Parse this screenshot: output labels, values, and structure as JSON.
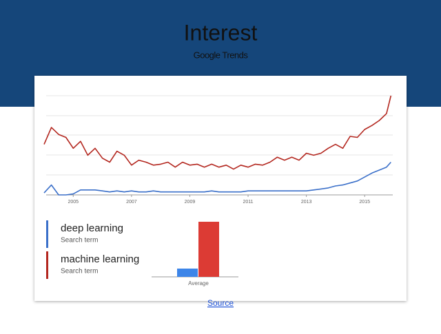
{
  "title": "Interest",
  "subtitle": "Google Trends",
  "link": "Source",
  "chart_data": [
    {
      "type": "line",
      "x": [
        2004.0,
        2004.25,
        2004.5,
        2004.75,
        2005.0,
        2005.25,
        2005.5,
        2005.75,
        2006.0,
        2006.25,
        2006.5,
        2006.75,
        2007.0,
        2007.25,
        2007.5,
        2007.75,
        2008.0,
        2008.25,
        2008.5,
        2008.75,
        2009.0,
        2009.25,
        2009.5,
        2009.75,
        2010.0,
        2010.25,
        2010.5,
        2010.75,
        2011.0,
        2011.25,
        2011.5,
        2011.75,
        2012.0,
        2012.25,
        2012.5,
        2012.75,
        2013.0,
        2013.25,
        2013.5,
        2013.75,
        2014.0,
        2014.25,
        2014.5,
        2014.75,
        2015.0,
        2015.25,
        2015.5,
        2015.75,
        2015.9
      ],
      "series": [
        {
          "name": "deep learning",
          "kind": "Search term",
          "color": "#3a6fc9",
          "values": [
            2,
            10,
            0,
            0,
            1,
            5,
            5,
            5,
            4,
            3,
            4,
            3,
            4,
            3,
            3,
            4,
            3,
            3,
            3,
            3,
            3,
            3,
            3,
            4,
            3,
            3,
            3,
            3,
            4,
            4,
            4,
            4,
            4,
            4,
            4,
            4,
            4,
            5,
            6,
            7,
            9,
            10,
            12,
            14,
            18,
            22,
            25,
            28,
            33
          ]
        },
        {
          "name": "machine learning",
          "kind": "Search term",
          "color": "#b3261e",
          "values": [
            51,
            68,
            61,
            58,
            47,
            54,
            40,
            47,
            37,
            33,
            44,
            40,
            30,
            35,
            33,
            30,
            31,
            33,
            28,
            33,
            30,
            31,
            28,
            31,
            28,
            30,
            26,
            30,
            28,
            31,
            30,
            33,
            38,
            35,
            38,
            35,
            42,
            40,
            42,
            47,
            51,
            47,
            59,
            58,
            66,
            70,
            75,
            82,
            100
          ]
        }
      ],
      "xlim": [
        2004,
        2016
      ],
      "xticks": [
        2005,
        2007,
        2009,
        2011,
        2013,
        2015
      ],
      "ylim": [
        0,
        100
      ]
    },
    {
      "type": "bar",
      "xlabel": "Average",
      "categories": [
        null,
        null
      ],
      "values": [
        6,
        40
      ],
      "colors": [
        "#3d85e8",
        "#dc3b34"
      ],
      "ylim": [
        0,
        40
      ]
    }
  ]
}
